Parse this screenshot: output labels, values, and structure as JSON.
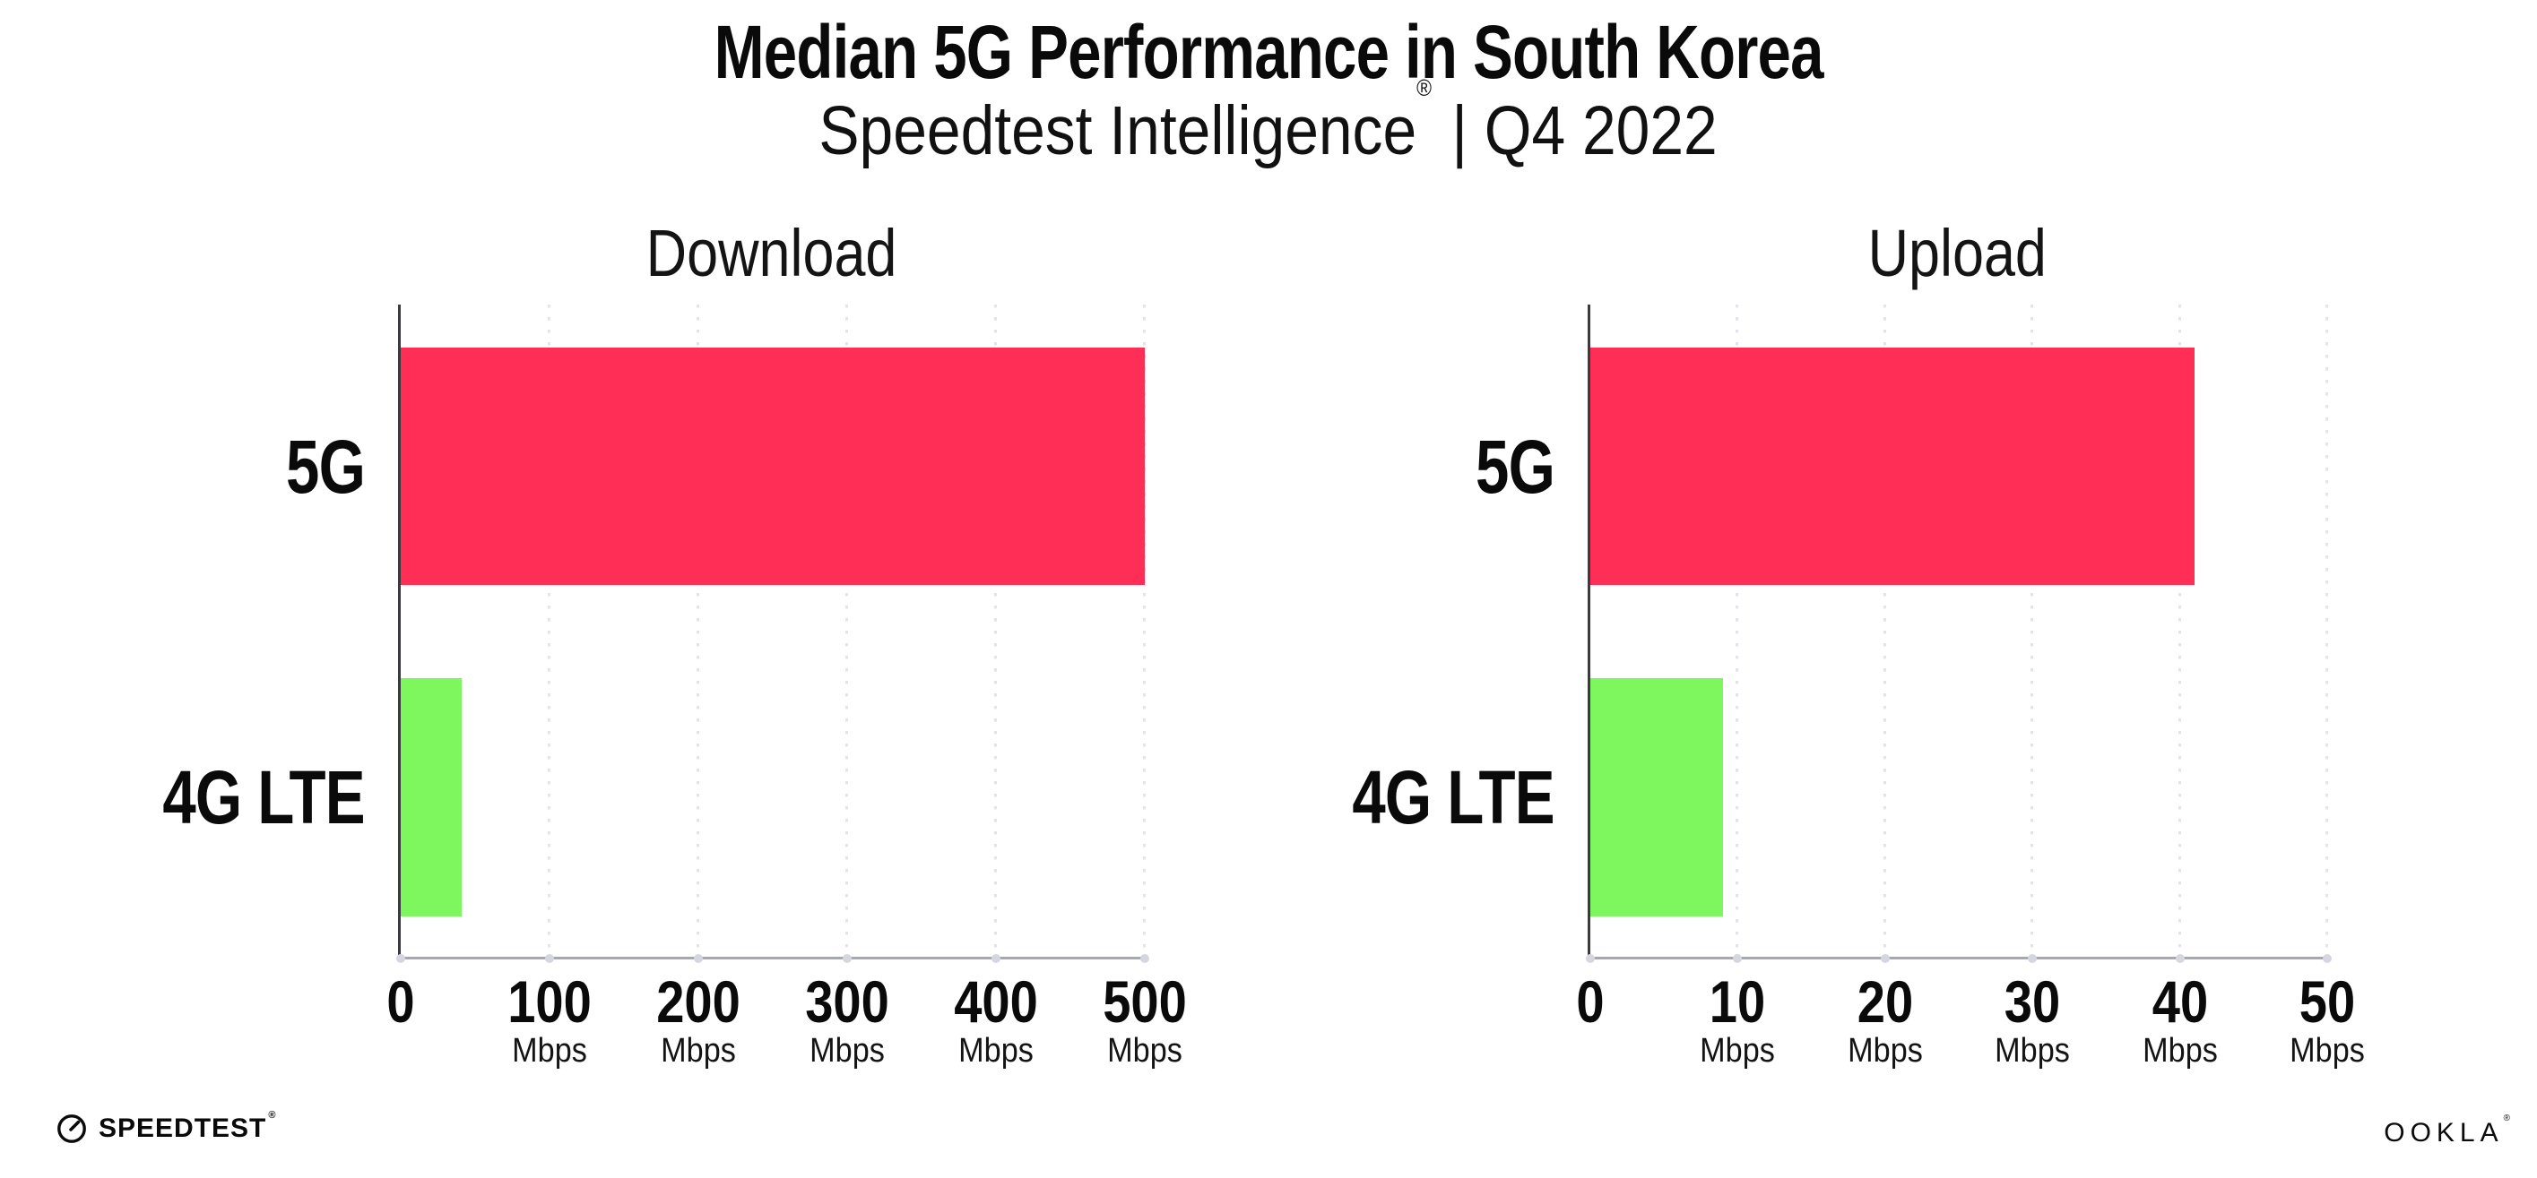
{
  "header": {
    "title": "Median 5G Performance in South Korea",
    "subtitle_brand": "Speedtest Intelligence",
    "subtitle_registered": "®",
    "subtitle_rest": " | Q4 2022"
  },
  "chart_data": [
    {
      "type": "bar",
      "orientation": "horizontal",
      "title": "Download",
      "categories": [
        "5G",
        "4G LTE"
      ],
      "values": [
        500,
        41
      ],
      "unit": "Mbps",
      "xlim": [
        0,
        500
      ],
      "xticks": [
        0,
        100,
        200,
        300,
        400,
        500
      ],
      "tick_unit_label": "Mbps",
      "bar_colors": [
        "#FF2E56",
        "#7DF75D"
      ],
      "grid": "dotted-vertical",
      "legend": "none"
    },
    {
      "type": "bar",
      "orientation": "horizontal",
      "title": "Upload",
      "categories": [
        "5G",
        "4G LTE"
      ],
      "values": [
        41,
        9
      ],
      "unit": "Mbps",
      "xlim": [
        0,
        50
      ],
      "xticks": [
        0,
        10,
        20,
        30,
        40,
        50
      ],
      "tick_unit_label": "Mbps",
      "bar_colors": [
        "#FF2E56",
        "#7DF75D"
      ],
      "grid": "dotted-vertical",
      "legend": "none"
    }
  ],
  "footer": {
    "speedtest_label": "SPEEDTEST",
    "speedtest_registered": "®",
    "speedtest_icon": "speedtest-gauge-icon",
    "ookla_label": "OOKLA",
    "ookla_registered": "®"
  },
  "colors": {
    "bar_5g": "#FF2E56",
    "bar_4g_lte": "#7DF75D",
    "gridline": "#E3E3EB",
    "y_axis": "#3B3B3F",
    "x_axis": "#A7A7AE",
    "background": "#FFFFFF",
    "text": "#0A0A0A"
  }
}
